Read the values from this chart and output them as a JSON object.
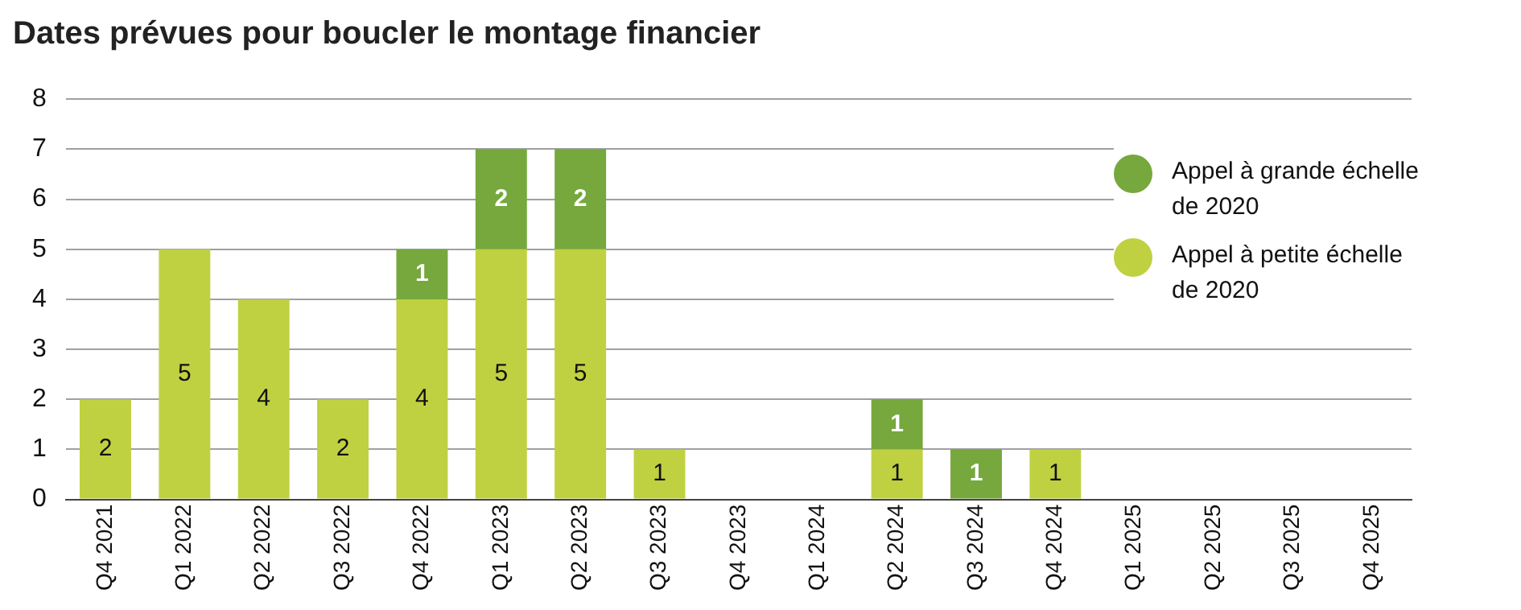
{
  "chart_data": {
    "type": "bar",
    "title": "Dates prévues pour boucler le montage financier",
    "categories": [
      "Q4 2021",
      "Q1 2022",
      "Q2 2022",
      "Q3 2022",
      "Q4 2022",
      "Q1 2023",
      "Q2 2023",
      "Q3 2023",
      "Q4 2023",
      "Q1 2024",
      "Q2 2024",
      "Q3 2024",
      "Q4 2024",
      "Q1 2025",
      "Q2 2025",
      "Q3 2025",
      "Q4 2025"
    ],
    "series": [
      {
        "name": "Appel à petite échelle de 2020",
        "color": "#bfd141",
        "values": [
          2,
          5,
          4,
          2,
          4,
          5,
          5,
          1,
          null,
          null,
          1,
          null,
          1,
          null,
          null,
          null,
          null
        ]
      },
      {
        "name": "Appel à grande échelle de 2020",
        "color": "#76a83d",
        "values": [
          null,
          null,
          null,
          null,
          1,
          2,
          2,
          null,
          null,
          null,
          1,
          1,
          null,
          null,
          null,
          null,
          null
        ]
      }
    ],
    "stacked": true,
    "ylim": [
      0,
      8
    ],
    "yticks": [
      0,
      1,
      2,
      3,
      4,
      5,
      6,
      7,
      8
    ],
    "grid": "y",
    "legend": "top right",
    "data_labels": true
  }
}
